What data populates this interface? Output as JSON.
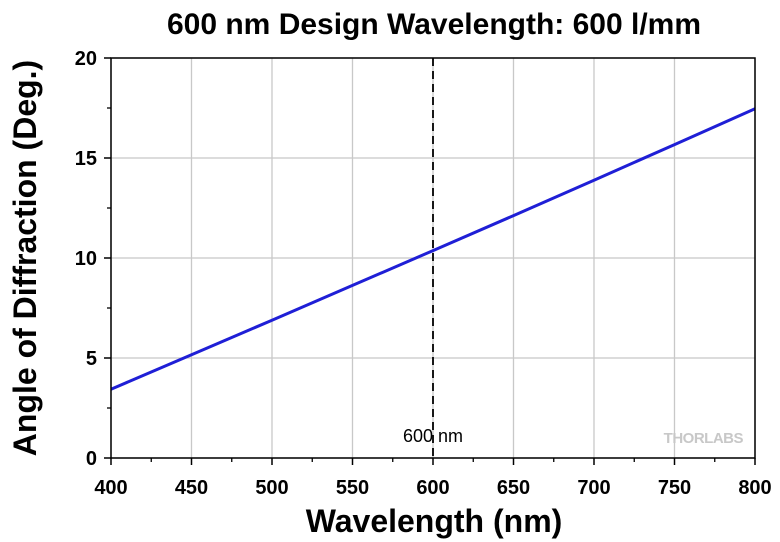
{
  "chart_data": {
    "type": "line",
    "title": "600 nm Design Wavelength: 600 l/mm",
    "xlabel": "Wavelength (nm)",
    "ylabel": "Angle of Diffraction (Deg.)",
    "xlim": [
      400,
      800
    ],
    "ylim": [
      0,
      20
    ],
    "xticks": [
      400,
      450,
      500,
      550,
      600,
      650,
      700,
      750,
      800
    ],
    "yticks": [
      0,
      5,
      10,
      15,
      20
    ],
    "x_minor_step": 25,
    "y_minor_step": 2.5,
    "grid": true,
    "legend": "none",
    "series": [
      {
        "color": "#1f1fd6",
        "x": [
          400,
          450,
          500,
          550,
          600,
          650,
          700,
          750,
          800
        ],
        "y": [
          3.44,
          5.16,
          6.89,
          8.63,
          10.37,
          12.12,
          13.89,
          15.67,
          17.46
        ]
      }
    ],
    "annotations": [
      {
        "type": "vline",
        "x": 600,
        "text": "600 nm",
        "style": "dashed",
        "color": "#000000"
      }
    ],
    "watermark": "THORLABS"
  }
}
